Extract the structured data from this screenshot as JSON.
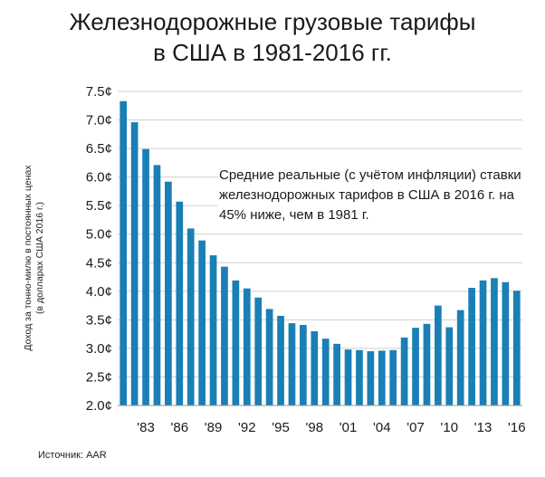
{
  "title_line1": "Железнодорожные грузовые тарифы",
  "title_line2": "в США в 1981-2016 гг.",
  "annotation": "Средние реальные (с учётом инфляции) ставки железнодорожных тарифов в США в 2016 г. на 45% ниже, чем в 1981 г.",
  "source": "Источник: AAR",
  "colors": {
    "bar": "#1a7fb5",
    "grid": "#cfcfcf",
    "text": "#1a1a1a"
  },
  "chart_data": {
    "type": "bar",
    "ylabel_line1": "Доход за тонно-милю в постоянных ценах",
    "ylabel_line2": "(в долларах США 2016 г.)",
    "ylim": [
      2.0,
      7.5
    ],
    "yticks": [
      "7.5¢",
      "7.0¢",
      "6.5¢",
      "6.0¢",
      "5.5¢",
      "5.0¢",
      "4.5¢",
      "4.0¢",
      "3.5¢",
      "3.0¢",
      "2.5¢",
      "2.0¢"
    ],
    "ytick_values": [
      7.5,
      7.0,
      6.5,
      6.0,
      5.5,
      5.0,
      4.5,
      4.0,
      3.5,
      3.0,
      2.5,
      2.0
    ],
    "xtick_labels": [
      "'83",
      "'86",
      "'89",
      "'92",
      "'95",
      "'98",
      "'01",
      "'04",
      "'07",
      "'10",
      "'13",
      "'16"
    ],
    "xtick_years": [
      1983,
      1986,
      1989,
      1992,
      1995,
      1998,
      2001,
      2004,
      2007,
      2010,
      2013,
      2016
    ],
    "grid": true,
    "categories": [
      1981,
      1982,
      1983,
      1984,
      1985,
      1986,
      1987,
      1988,
      1989,
      1990,
      1991,
      1992,
      1993,
      1994,
      1995,
      1996,
      1997,
      1998,
      1999,
      2000,
      2001,
      2002,
      2003,
      2004,
      2005,
      2006,
      2007,
      2008,
      2009,
      2010,
      2011,
      2012,
      2013,
      2014,
      2015,
      2016
    ],
    "values": [
      7.33,
      6.96,
      6.49,
      6.21,
      5.92,
      5.57,
      5.1,
      4.89,
      4.63,
      4.43,
      4.19,
      4.05,
      3.89,
      3.69,
      3.57,
      3.44,
      3.41,
      3.3,
      3.17,
      3.08,
      2.98,
      2.97,
      2.95,
      2.96,
      2.97,
      3.19,
      3.36,
      3.43,
      3.75,
      3.37,
      3.67,
      4.06,
      4.19,
      4.23,
      4.16,
      4.01
    ]
  }
}
